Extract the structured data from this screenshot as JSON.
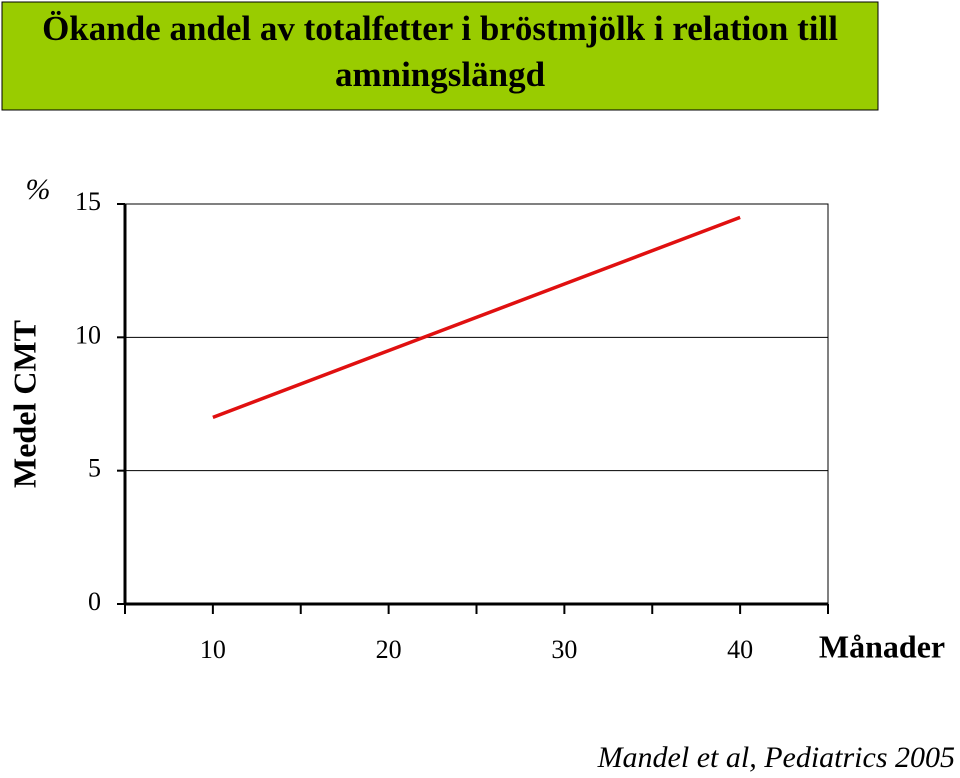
{
  "chart_data": {
    "type": "line",
    "title": "Ökande andel av totalfetter i bröstmjölk i relation till amningslängd",
    "y_unit": "%",
    "ylabel": "Medel CMT",
    "xlabel": "Månader",
    "source": "Mandel et al, Pediatrics 2005",
    "categories": [
      "10",
      "20",
      "30",
      "40"
    ],
    "series": [
      {
        "name": "CMT",
        "color": "#e01010",
        "values": [
          7,
          9.5,
          12,
          14.5
        ]
      }
    ],
    "ylim": [
      0,
      15
    ],
    "yticks": [
      0,
      5,
      10,
      15
    ],
    "grid": true
  }
}
